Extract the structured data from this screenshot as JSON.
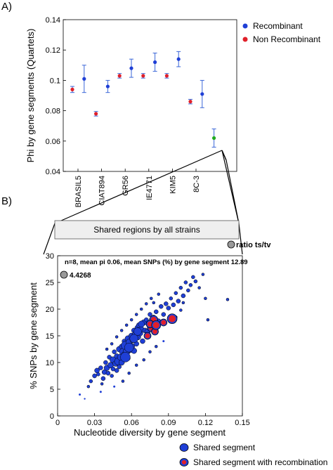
{
  "panel_labels": {
    "a": "A)",
    "b": "B)"
  },
  "shared_box_label": "Shared regions by all strains",
  "ratio_label": "ratio ts/tv",
  "chart_data": [
    {
      "type": "scatter",
      "title": "",
      "ylabel": "Phi by gene segments (Quartets)",
      "xlabel": "",
      "ylim": [
        0.04,
        0.14
      ],
      "yticks": [
        "0.04",
        "0.06",
        "0.08",
        "0.1",
        "0.12",
        "0.14"
      ],
      "yticks_values": [
        0.04,
        0.06,
        0.08,
        0.1,
        0.12,
        0.14
      ],
      "xticks": [
        "BRASIL5",
        "CIAT894",
        "GR56",
        "IE4771",
        "KIM5",
        "8C-3"
      ],
      "legend": {
        "placement": "top-right",
        "entries": [
          {
            "label": "Recombinant",
            "color": "#1f3fd6"
          },
          {
            "label": "Non Recombinant",
            "color": "#e0202a"
          }
        ]
      },
      "grid": false,
      "points": [
        {
          "x": 1,
          "y": 0.094,
          "err": 0.002,
          "group": "non"
        },
        {
          "x": 2,
          "y": 0.101,
          "err": 0.009,
          "group": "rec"
        },
        {
          "x": 3,
          "y": 0.078,
          "err": 0.0015,
          "group": "non"
        },
        {
          "x": 4,
          "y": 0.096,
          "err": 0.004,
          "group": "rec"
        },
        {
          "x": 5,
          "y": 0.103,
          "err": 0.0015,
          "group": "non"
        },
        {
          "x": 6,
          "y": 0.108,
          "err": 0.006,
          "group": "rec"
        },
        {
          "x": 7,
          "y": 0.103,
          "err": 0.0015,
          "group": "non"
        },
        {
          "x": 8,
          "y": 0.112,
          "err": 0.006,
          "group": "rec"
        },
        {
          "x": 9,
          "y": 0.103,
          "err": 0.0015,
          "group": "non"
        },
        {
          "x": 10,
          "y": 0.114,
          "err": 0.005,
          "group": "rec"
        },
        {
          "x": 11,
          "y": 0.086,
          "err": 0.0015,
          "group": "non"
        },
        {
          "x": 12,
          "y": 0.091,
          "err": 0.009,
          "group": "rec"
        },
        {
          "x": 13,
          "y": 0.062,
          "err": 0.006,
          "group": "shared"
        }
      ]
    },
    {
      "type": "scatter",
      "title": "n=8, mean pi 0.06, mean SNPs (%) by gene segment 12.89",
      "xlabel": "Nucleotide diversity by gene segment",
      "ylabel": "% SNPs by gene segment",
      "xlim": [
        0,
        0.15
      ],
      "ylim": [
        0,
        30
      ],
      "xticks": [
        "0",
        "0.03",
        "0.06",
        "0.09",
        "0.12",
        "0.15"
      ],
      "xticks_values": [
        0,
        0.03,
        0.06,
        0.09,
        0.12,
        0.15
      ],
      "yticks": [
        "0",
        "5",
        "10",
        "15",
        "20",
        "25",
        "30"
      ],
      "yticks_values": [
        0,
        5,
        10,
        15,
        20,
        25,
        30
      ],
      "size_legend": {
        "label": "4.4268"
      },
      "legend": {
        "placement": "bottom",
        "entries": [
          {
            "label": "Shared segment",
            "color": "#1f3fd6"
          },
          {
            "label": "Shared segment with recombination",
            "color": "#e0202a"
          }
        ]
      },
      "grid": false,
      "points": [
        [
          0.018,
          4.0,
          1.5,
          "b"
        ],
        [
          0.022,
          3.2,
          1.2,
          "b"
        ],
        [
          0.025,
          5.5,
          2.0,
          "b"
        ],
        [
          0.027,
          6.5,
          2.5,
          "b"
        ],
        [
          0.03,
          7.5,
          3.0,
          "b"
        ],
        [
          0.032,
          8.5,
          3.5,
          "b"
        ],
        [
          0.033,
          7.8,
          2.5,
          "b"
        ],
        [
          0.035,
          9.0,
          3.0,
          "b"
        ],
        [
          0.036,
          6.0,
          2.0,
          "b"
        ],
        [
          0.037,
          7.0,
          3.0,
          "b"
        ],
        [
          0.038,
          8.2,
          3.5,
          "b"
        ],
        [
          0.039,
          10.0,
          3.0,
          "b"
        ],
        [
          0.04,
          9.0,
          4.0,
          "b"
        ],
        [
          0.041,
          8.0,
          3.0,
          "b"
        ],
        [
          0.042,
          11.0,
          3.0,
          "b"
        ],
        [
          0.043,
          9.5,
          4.0,
          "b"
        ],
        [
          0.044,
          7.5,
          2.5,
          "b"
        ],
        [
          0.045,
          10.5,
          4.5,
          "b"
        ],
        [
          0.045,
          8.8,
          3.0,
          "b"
        ],
        [
          0.046,
          12.0,
          3.0,
          "b"
        ],
        [
          0.047,
          9.8,
          4.0,
          "b"
        ],
        [
          0.048,
          11.2,
          3.5,
          "b"
        ],
        [
          0.048,
          8.5,
          3.0,
          "b"
        ],
        [
          0.049,
          10.2,
          5.0,
          "b"
        ],
        [
          0.05,
          12.5,
          4.0,
          "b"
        ],
        [
          0.05,
          9.2,
          3.0,
          "b"
        ],
        [
          0.051,
          11.0,
          4.5,
          "b"
        ],
        [
          0.052,
          13.0,
          3.5,
          "b"
        ],
        [
          0.052,
          10.0,
          4.0,
          "b"
        ],
        [
          0.053,
          12.0,
          5.0,
          "b"
        ],
        [
          0.054,
          14.0,
          3.0,
          "b"
        ],
        [
          0.054,
          11.5,
          4.0,
          "b"
        ],
        [
          0.055,
          13.2,
          6.0,
          "b"
        ],
        [
          0.056,
          12.0,
          5.0,
          "b"
        ],
        [
          0.057,
          14.5,
          4.0,
          "b"
        ],
        [
          0.057,
          10.8,
          3.5,
          "b"
        ],
        [
          0.058,
          13.8,
          4.5,
          "b"
        ],
        [
          0.059,
          12.5,
          5.0,
          "b"
        ],
        [
          0.06,
          15.0,
          4.0,
          "b"
        ],
        [
          0.06,
          13.0,
          4.5,
          "b"
        ],
        [
          0.061,
          14.2,
          4.0,
          "b"
        ],
        [
          0.062,
          16.0,
          3.5,
          "b"
        ],
        [
          0.062,
          12.2,
          4.0,
          "b"
        ],
        [
          0.063,
          15.2,
          4.5,
          "b"
        ],
        [
          0.064,
          13.5,
          3.5,
          "b"
        ],
        [
          0.065,
          16.5,
          4.0,
          "b"
        ],
        [
          0.065,
          14.8,
          4.5,
          "b"
        ],
        [
          0.066,
          17.0,
          3.5,
          "b"
        ],
        [
          0.067,
          15.5,
          4.0,
          "b"
        ],
        [
          0.068,
          16.2,
          4.0,
          "b"
        ],
        [
          0.069,
          14.0,
          3.5,
          "b"
        ],
        [
          0.07,
          17.5,
          4.0,
          "b"
        ],
        [
          0.071,
          16.0,
          3.5,
          "b"
        ],
        [
          0.072,
          18.0,
          3.0,
          "b"
        ],
        [
          0.073,
          15.8,
          4.0,
          "b"
        ],
        [
          0.074,
          17.2,
          3.5,
          "b"
        ],
        [
          0.075,
          19.0,
          3.0,
          "b"
        ],
        [
          0.076,
          16.8,
          3.5,
          "b"
        ],
        [
          0.078,
          18.5,
          3.0,
          "b"
        ],
        [
          0.08,
          19.5,
          3.0,
          "b"
        ],
        [
          0.082,
          17.8,
          3.0,
          "b"
        ],
        [
          0.084,
          20.5,
          3.0,
          "b"
        ],
        [
          0.086,
          19.0,
          3.0,
          "b"
        ],
        [
          0.088,
          21.0,
          3.0,
          "b"
        ],
        [
          0.09,
          20.2,
          3.0,
          "b"
        ],
        [
          0.092,
          22.0,
          2.5,
          "b"
        ],
        [
          0.094,
          20.8,
          3.0,
          "b"
        ],
        [
          0.096,
          23.0,
          2.5,
          "b"
        ],
        [
          0.098,
          21.5,
          3.0,
          "b"
        ],
        [
          0.1,
          24.0,
          2.5,
          "b"
        ],
        [
          0.102,
          22.5,
          3.0,
          "b"
        ],
        [
          0.104,
          25.0,
          2.5,
          "b"
        ],
        [
          0.106,
          23.5,
          2.5,
          "b"
        ],
        [
          0.108,
          24.5,
          2.5,
          "b"
        ],
        [
          0.11,
          26.0,
          2.5,
          "b"
        ],
        [
          0.112,
          25.2,
          2.5,
          "b"
        ],
        [
          0.115,
          24.0,
          2.0,
          "b"
        ],
        [
          0.118,
          26.5,
          2.0,
          "b"
        ],
        [
          0.12,
          22.0,
          2.0,
          "b"
        ],
        [
          0.122,
          18.0,
          2.0,
          "b"
        ],
        [
          0.138,
          21.8,
          2.0,
          "b"
        ],
        [
          0.096,
          18.5,
          2.0,
          "b"
        ],
        [
          0.1,
          19.8,
          2.0,
          "b"
        ],
        [
          0.102,
          21.2,
          2.0,
          "b"
        ],
        [
          0.046,
          5.5,
          1.5,
          "b"
        ],
        [
          0.053,
          6.5,
          2.0,
          "b"
        ],
        [
          0.058,
          8.0,
          2.0,
          "b"
        ],
        [
          0.064,
          9.5,
          2.0,
          "b"
        ],
        [
          0.07,
          10.5,
          2.0,
          "b"
        ],
        [
          0.075,
          12.0,
          2.0,
          "b"
        ],
        [
          0.08,
          13.0,
          2.0,
          "b"
        ],
        [
          0.086,
          14.0,
          1.5,
          "b"
        ],
        [
          0.04,
          12.5,
          2.0,
          "b"
        ],
        [
          0.044,
          13.5,
          2.0,
          "b"
        ],
        [
          0.048,
          14.8,
          2.0,
          "b"
        ],
        [
          0.052,
          16.0,
          2.0,
          "b"
        ],
        [
          0.056,
          17.0,
          2.0,
          "b"
        ],
        [
          0.06,
          18.0,
          2.0,
          "b"
        ],
        [
          0.064,
          19.0,
          2.0,
          "b"
        ],
        [
          0.068,
          20.0,
          2.0,
          "b"
        ],
        [
          0.072,
          21.0,
          2.0,
          "b"
        ],
        [
          0.076,
          22.0,
          2.0,
          "b"
        ],
        [
          0.078,
          21.2,
          2.0,
          "b"
        ],
        [
          0.082,
          22.8,
          2.0,
          "b"
        ],
        [
          0.035,
          4.5,
          1.5,
          "b"
        ],
        [
          0.055,
          11.0,
          7.0,
          "b"
        ],
        [
          0.062,
          14.5,
          6.0,
          "b"
        ],
        [
          0.058,
          12.8,
          6.5,
          "b"
        ],
        [
          0.065,
          15.8,
          5.5,
          "b"
        ],
        [
          0.068,
          17.2,
          4.5,
          "b"
        ],
        [
          0.073,
          15.0,
          5.0,
          "r"
        ],
        [
          0.076,
          16.5,
          5.5,
          "r"
        ],
        [
          0.078,
          18.0,
          6.0,
          "r"
        ],
        [
          0.075,
          17.2,
          5.5,
          "r"
        ],
        [
          0.079,
          15.8,
          5.0,
          "r"
        ],
        [
          0.08,
          17.0,
          6.5,
          "r"
        ],
        [
          0.086,
          17.5,
          5.0,
          "r"
        ],
        [
          0.093,
          18.2,
          7.0,
          "r"
        ]
      ]
    }
  ]
}
